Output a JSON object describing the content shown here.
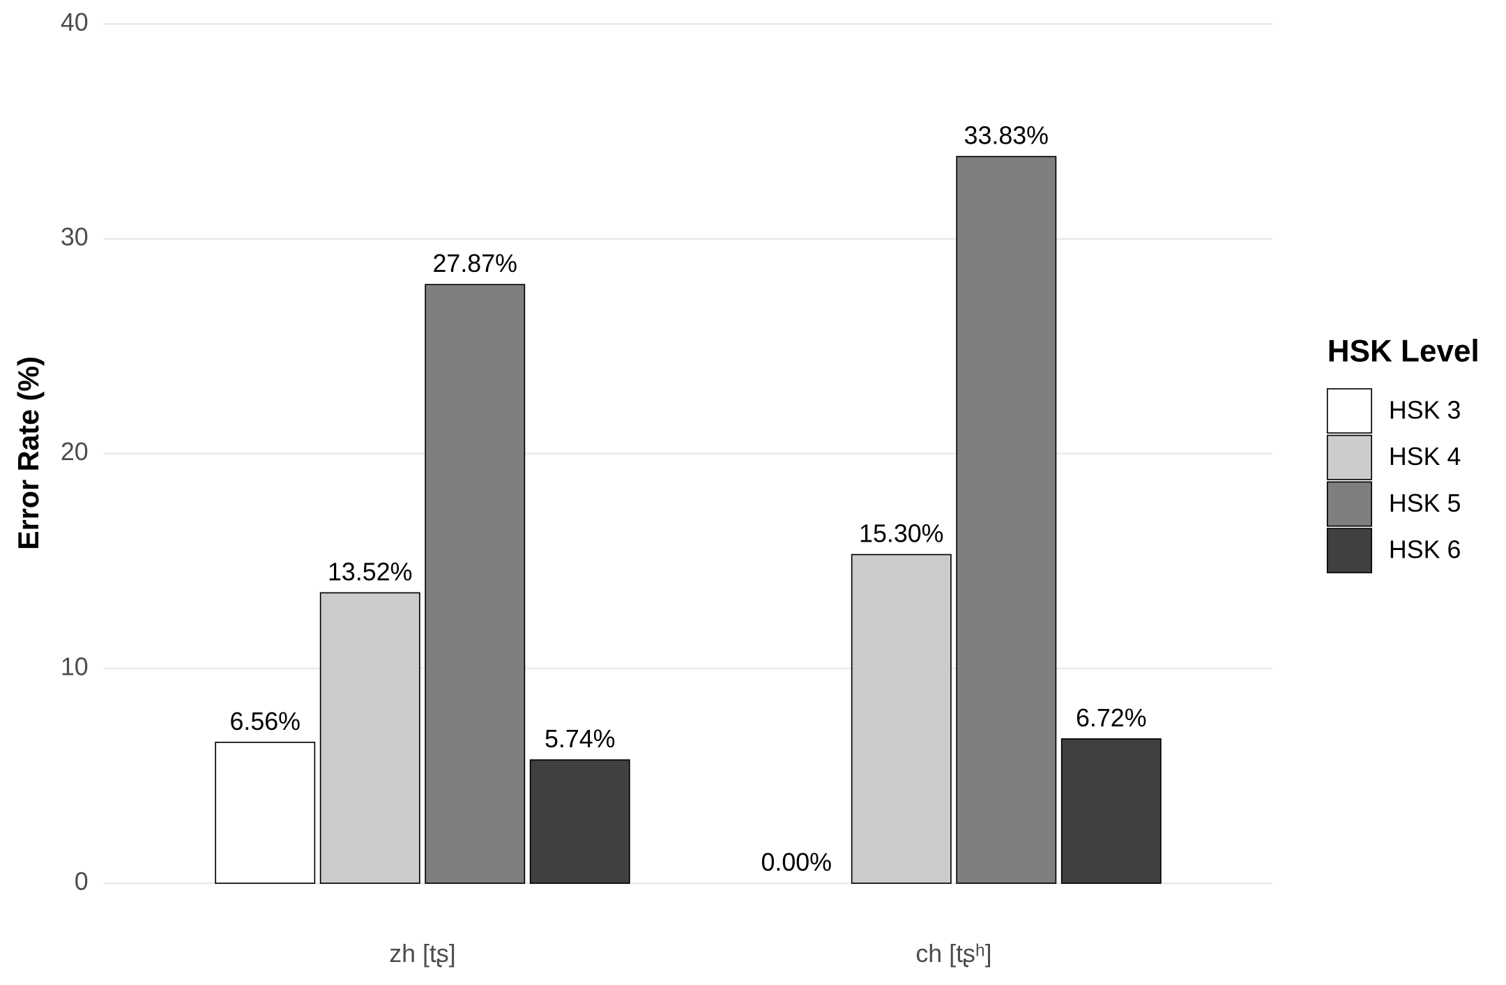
{
  "chart_data": {
    "type": "bar",
    "y_label": "Error Rate (%)",
    "legend_title": "HSK Level",
    "legend_position": "right",
    "categories": [
      "zh [tʂ]",
      "ch [tʂʰ]"
    ],
    "series": [
      {
        "name": "HSK 3",
        "color": "#ffffff",
        "values": [
          6.56,
          0.0
        ],
        "value_labels": [
          "6.56%",
          "0.00%"
        ]
      },
      {
        "name": "HSK 4",
        "color": "#cccccc",
        "values": [
          13.52,
          15.3
        ],
        "value_labels": [
          "13.52%",
          "15.30%"
        ]
      },
      {
        "name": "HSK 5",
        "color": "#7f7f7f",
        "values": [
          27.87,
          33.83
        ],
        "value_labels": [
          "27.87%",
          "33.83%"
        ]
      },
      {
        "name": "HSK 6",
        "color": "#404040",
        "values": [
          5.74,
          6.72
        ],
        "value_labels": [
          "5.74%",
          "6.72%"
        ]
      }
    ],
    "ylim": [
      0,
      40
    ],
    "yticks": [
      0,
      10,
      20,
      30,
      40
    ],
    "grid": true
  }
}
